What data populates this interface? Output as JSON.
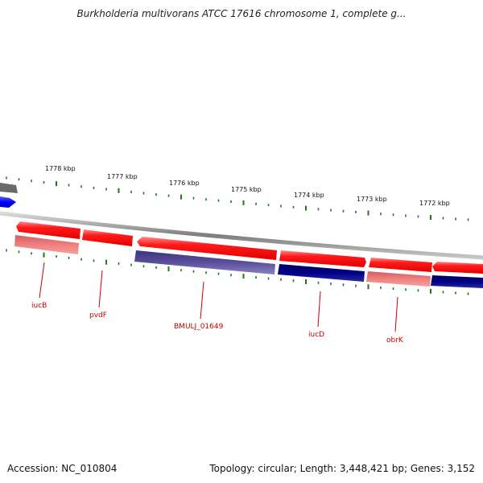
{
  "title": "Burkholderia multivorans ATCC 17616 chromosome 1, complete g...",
  "accession": "Accession: NC_010804",
  "summary": "Topology: circular; Length: 3,448,421 bp; Genes: 3,152",
  "colors": {
    "forward_gene": "#ff0000",
    "forward_gene_light": "#f08080",
    "reverse_gene": "#000080",
    "reverse_gene_light": "#5a4f9a",
    "backbone": "#888888",
    "ticks": "#1a7a1a",
    "label": "#cc0000",
    "edge_blue": "#0000ff"
  },
  "kbp_ticks": [
    {
      "label": "1778 kbp",
      "pos": 1778
    },
    {
      "label": "1777 kbp",
      "pos": 1777
    },
    {
      "label": "1776 kbp",
      "pos": 1776
    },
    {
      "label": "1775 kbp",
      "pos": 1775
    },
    {
      "label": "1774 kbp",
      "pos": 1774
    },
    {
      "label": "1773 kbp",
      "pos": 1773
    },
    {
      "label": "1772 kbp",
      "pos": 1772
    }
  ],
  "genes": [
    {
      "name": "iucB"
    },
    {
      "name": "pvdF"
    },
    {
      "name": "BMULJ_01649"
    },
    {
      "name": "iucD"
    },
    {
      "name": "obrK"
    }
  ]
}
